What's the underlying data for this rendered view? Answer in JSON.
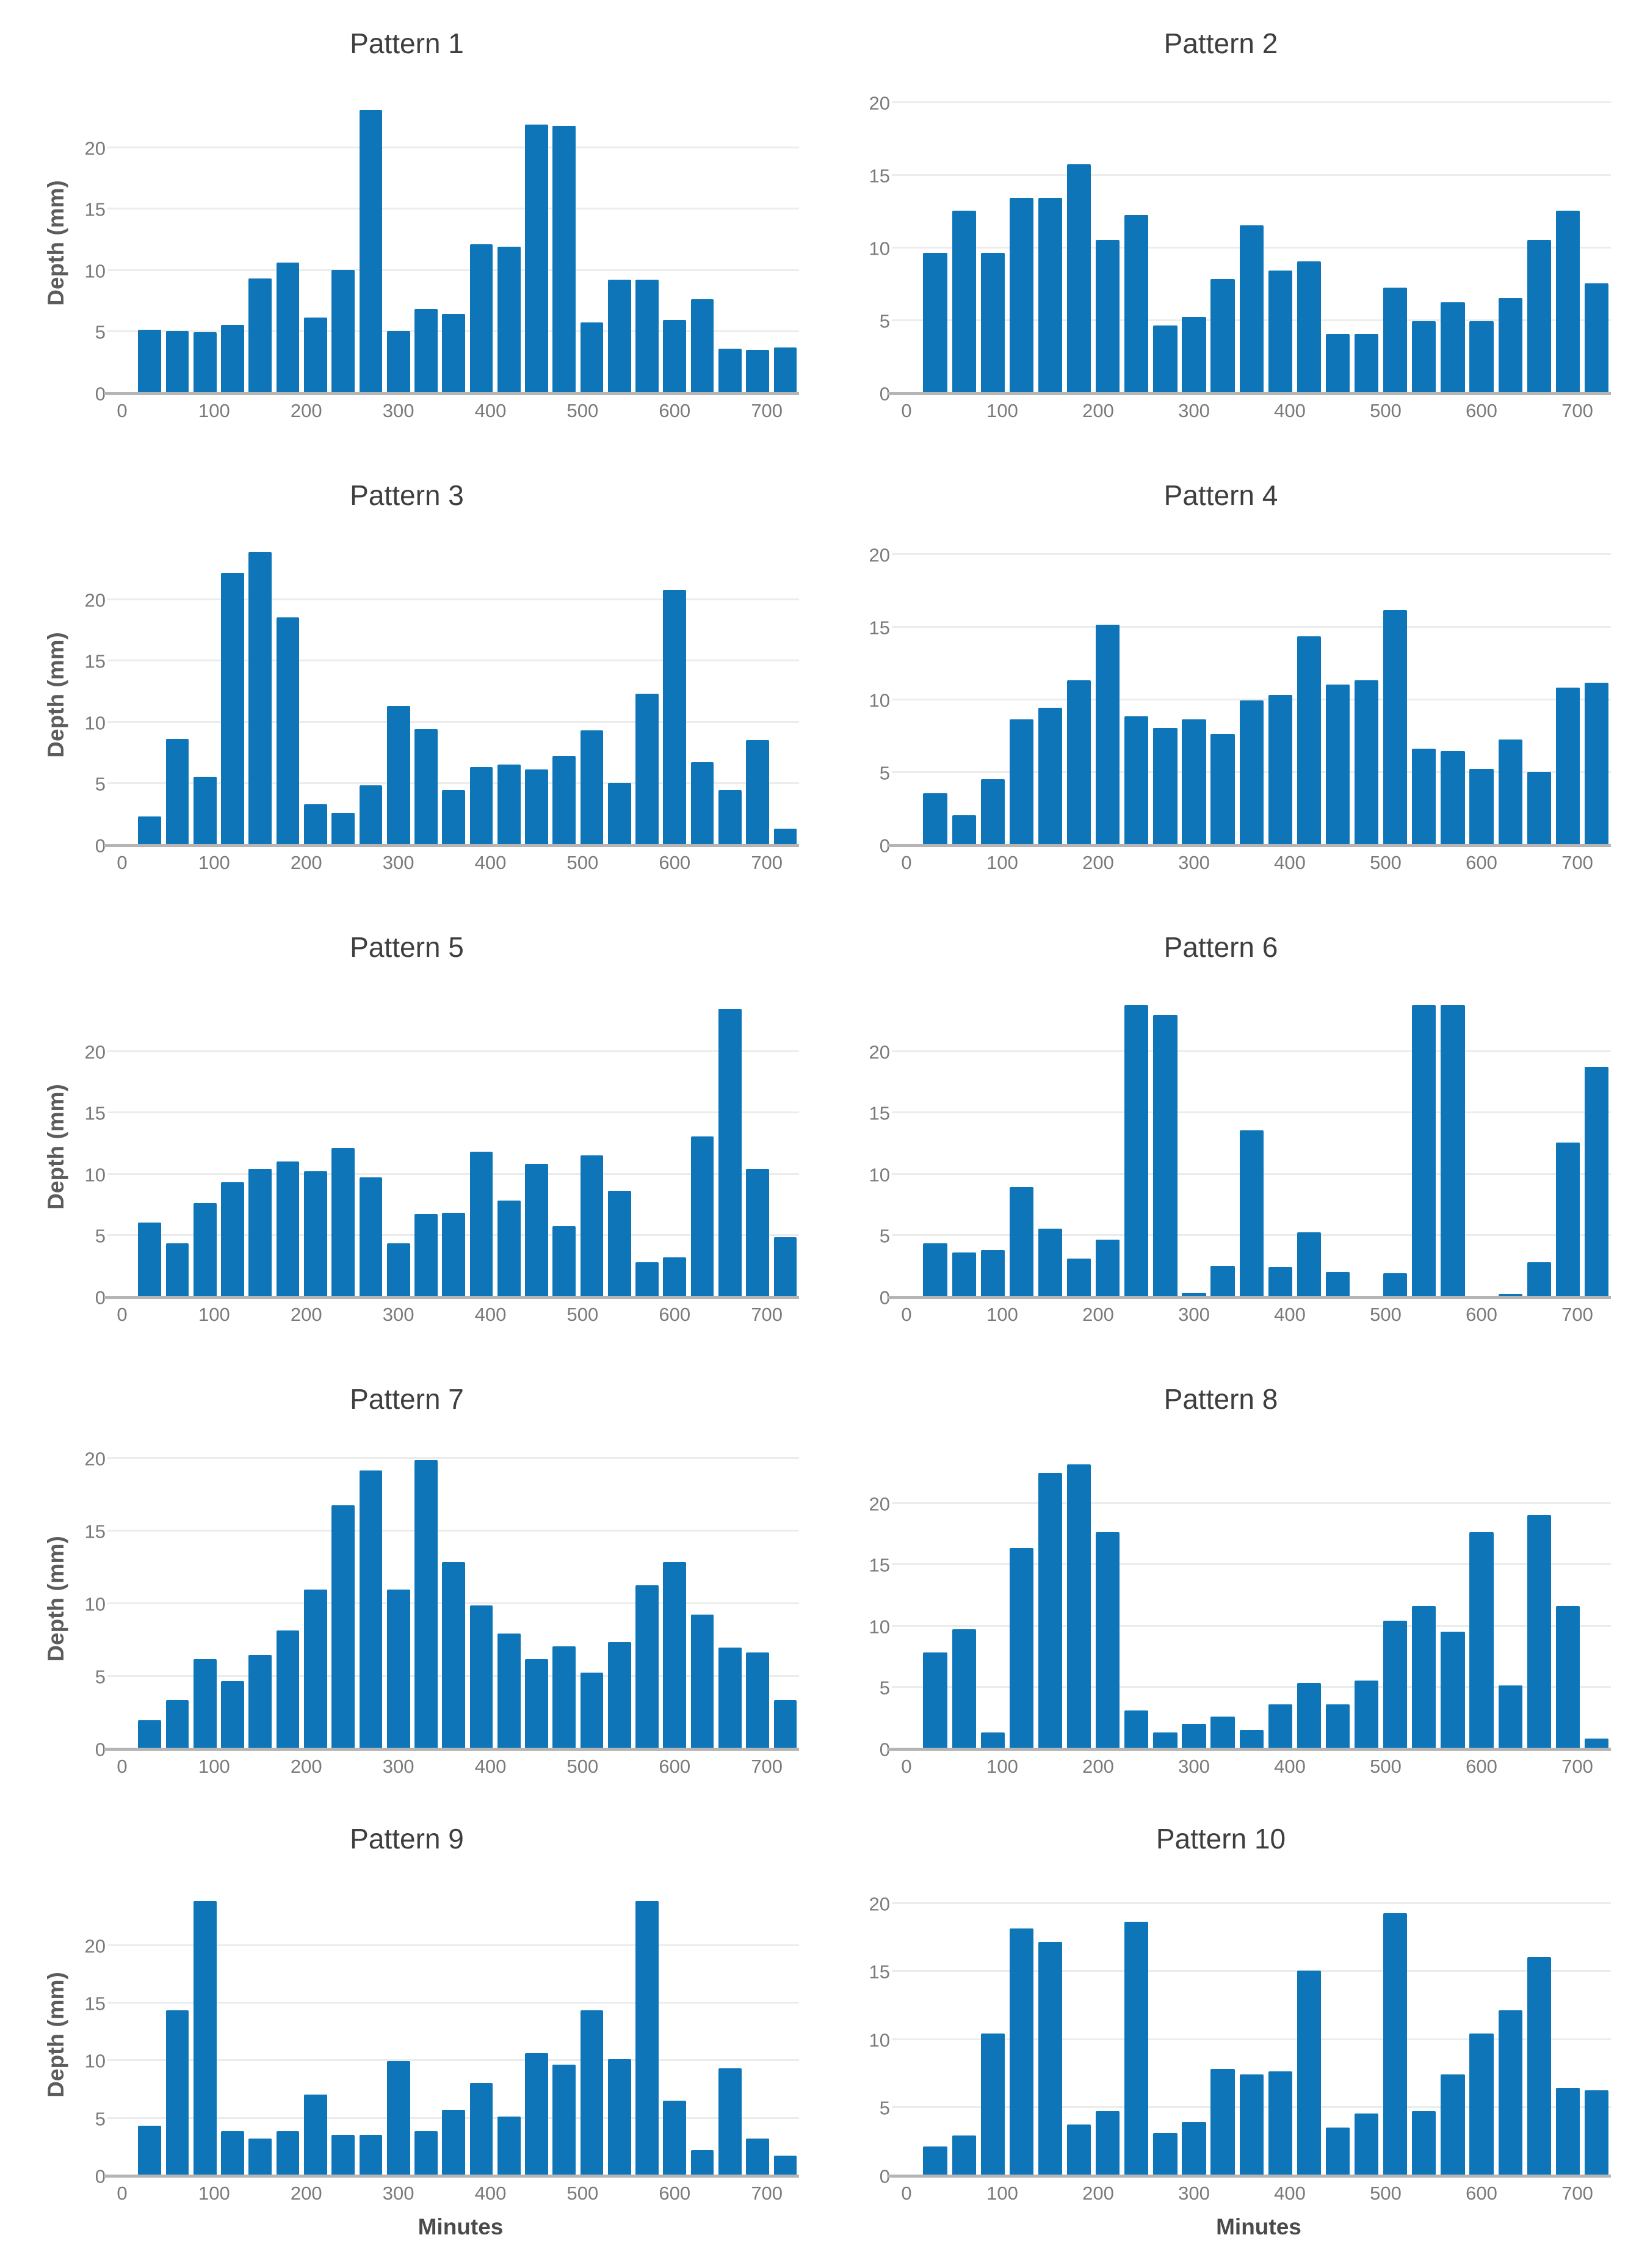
{
  "figure": {
    "x_minutes": [
      30,
      60,
      90,
      120,
      150,
      180,
      210,
      240,
      270,
      300,
      330,
      360,
      390,
      420,
      450,
      480,
      510,
      540,
      570,
      600,
      630,
      660,
      690,
      720
    ],
    "bar_width_minutes": 25,
    "xlim": [
      0,
      735
    ],
    "xticks": [
      0,
      100,
      200,
      300,
      400,
      500,
      600,
      700
    ],
    "yticks": [
      0,
      5,
      10,
      15,
      20
    ],
    "ylabel": "Depth (mm)",
    "xlabel": "Minutes",
    "colors": {
      "bar": "#0e76b8",
      "grid": "#ececec",
      "axis_line": "#b5b5b5",
      "tick_text": "#7a7a7a",
      "title_text": "#3e3e3e",
      "y_label_text": "#5c5c5c",
      "x_label_text": "#4a4a4a",
      "background": "#ffffff"
    }
  },
  "chart_data": [
    {
      "type": "bar",
      "title": "Pattern 1",
      "ylabel": "Depth (mm)",
      "xlabel": "",
      "ylim": [
        0,
        24.6
      ],
      "grid": true,
      "legend": "none",
      "values": [
        5.2,
        5.1,
        5.0,
        5.6,
        9.4,
        10.7,
        6.2,
        10.1,
        23.1,
        5.1,
        6.9,
        6.5,
        12.2,
        12.0,
        21.9,
        21.8,
        5.8,
        9.3,
        9.3,
        6.0,
        7.7,
        3.7,
        3.6,
        3.8
      ]
    },
    {
      "type": "bar",
      "title": "Pattern 2",
      "ylabel": "",
      "xlabel": "",
      "ylim": [
        0,
        20.8
      ],
      "grid": true,
      "legend": "none",
      "values": [
        9.7,
        12.6,
        9.7,
        13.5,
        13.5,
        15.8,
        10.6,
        12.3,
        4.7,
        5.3,
        7.9,
        11.6,
        8.5,
        9.1,
        4.1,
        4.1,
        7.3,
        5.0,
        6.3,
        5.0,
        6.6,
        10.6,
        12.6,
        7.6
      ]
    },
    {
      "type": "bar",
      "title": "Pattern 3",
      "ylabel": "Depth (mm)",
      "xlabel": "",
      "ylim": [
        0,
        24.6
      ],
      "grid": true,
      "legend": "none",
      "values": [
        2.4,
        8.7,
        5.6,
        22.2,
        23.9,
        18.6,
        3.4,
        2.7,
        4.9,
        11.4,
        9.5,
        4.5,
        6.4,
        6.6,
        6.2,
        7.3,
        9.4,
        5.1,
        12.4,
        20.8,
        6.8,
        4.5,
        8.6,
        1.4
      ]
    },
    {
      "type": "bar",
      "title": "Pattern 4",
      "ylabel": "",
      "xlabel": "",
      "ylim": [
        0,
        20.8
      ],
      "grid": true,
      "legend": "none",
      "values": [
        3.6,
        2.1,
        4.6,
        8.7,
        9.5,
        11.4,
        15.2,
        8.9,
        8.1,
        8.7,
        7.7,
        10.0,
        10.4,
        14.4,
        11.1,
        11.4,
        16.2,
        6.7,
        6.5,
        5.3,
        7.3,
        5.1,
        10.9,
        11.2
      ]
    },
    {
      "type": "bar",
      "title": "Pattern 5",
      "ylabel": "Depth (mm)",
      "xlabel": "",
      "ylim": [
        0,
        24.6
      ],
      "grid": true,
      "legend": "none",
      "values": [
        6.1,
        4.4,
        7.7,
        9.4,
        10.5,
        11.1,
        10.3,
        12.2,
        9.8,
        4.4,
        6.8,
        6.9,
        11.9,
        7.9,
        10.9,
        5.8,
        11.6,
        8.7,
        2.9,
        3.3,
        13.1,
        23.5,
        10.5,
        4.9
      ]
    },
    {
      "type": "bar",
      "title": "Pattern 6",
      "ylabel": "",
      "xlabel": "",
      "ylim": [
        0,
        24.6
      ],
      "grid": true,
      "legend": "none",
      "values": [
        4.4,
        3.7,
        3.9,
        9.0,
        5.6,
        3.2,
        4.7,
        23.8,
        23.0,
        0.4,
        2.6,
        13.6,
        2.5,
        5.3,
        2.1,
        0,
        2.0,
        23.8,
        23.8,
        0,
        0.3,
        2.9,
        12.6,
        18.8
      ]
    },
    {
      "type": "bar",
      "title": "Pattern 7",
      "ylabel": "Depth (mm)",
      "xlabel": "",
      "ylim": [
        0,
        20.8
      ],
      "grid": true,
      "legend": "none",
      "values": [
        2.0,
        3.4,
        6.2,
        4.7,
        6.5,
        8.2,
        11.0,
        16.8,
        19.2,
        11.0,
        19.9,
        12.9,
        9.9,
        8.0,
        6.2,
        7.1,
        5.3,
        7.4,
        11.3,
        12.9,
        9.3,
        7.0,
        6.7,
        3.4
      ]
    },
    {
      "type": "bar",
      "title": "Pattern 8",
      "ylabel": "",
      "xlabel": "",
      "ylim": [
        0,
        24.6
      ],
      "grid": true,
      "legend": "none",
      "values": [
        7.9,
        9.8,
        1.4,
        16.4,
        22.5,
        23.2,
        17.7,
        3.2,
        1.4,
        2.1,
        2.7,
        1.6,
        3.7,
        5.4,
        3.7,
        5.6,
        10.5,
        11.7,
        9.6,
        17.7,
        5.2,
        19.1,
        11.7,
        0.9
      ]
    },
    {
      "type": "bar",
      "title": "Pattern 9",
      "ylabel": "Depth (mm)",
      "xlabel": "Minutes",
      "ylim": [
        0,
        24.6
      ],
      "grid": true,
      "legend": "none",
      "values": [
        4.4,
        14.4,
        23.9,
        3.9,
        3.3,
        3.9,
        7.1,
        3.6,
        3.6,
        10.0,
        3.9,
        5.8,
        8.1,
        5.2,
        10.7,
        9.7,
        14.4,
        10.2,
        23.9,
        6.6,
        2.3,
        9.4,
        3.3,
        1.8
      ]
    },
    {
      "type": "bar",
      "title": "Pattern 10",
      "ylabel": "",
      "xlabel": "Minutes",
      "ylim": [
        0,
        20.8
      ],
      "grid": true,
      "legend": "none",
      "values": [
        2.2,
        3.0,
        10.5,
        18.2,
        17.2,
        3.8,
        4.8,
        18.7,
        3.2,
        4.0,
        7.9,
        7.5,
        7.7,
        15.1,
        3.6,
        4.6,
        19.3,
        4.8,
        7.5,
        10.5,
        12.2,
        16.1,
        6.5,
        6.3
      ]
    }
  ]
}
